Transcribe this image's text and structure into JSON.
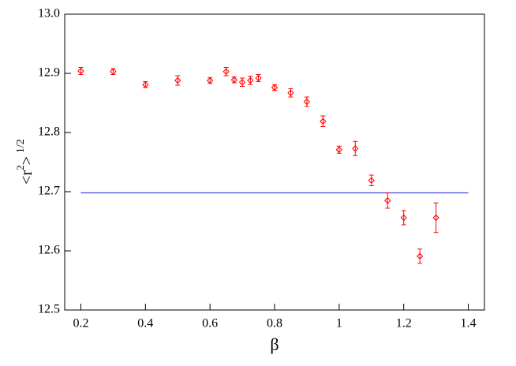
{
  "chart_data": {
    "type": "scatter",
    "x_label": "β",
    "y_label": [
      "<r",
      "2",
      ">",
      "1/2"
    ],
    "xlim": [
      0.15,
      1.45
    ],
    "xticks": [
      0.2,
      0.4,
      0.6,
      0.8,
      1,
      1.2,
      1.4
    ],
    "ylim": [
      12.5,
      13.0
    ],
    "yticks": [
      12.5,
      12.6,
      12.7,
      12.8,
      12.9,
      {
        "value": 13.0,
        "label": "13.0"
      }
    ],
    "series": [
      {
        "color": "#ff0000",
        "x": [
          0.2,
          0.3,
          0.4,
          0.5,
          0.6,
          0.65,
          0.675,
          0.7,
          0.725,
          0.75,
          0.8,
          0.85,
          0.9,
          0.95,
          1.0,
          1.05,
          1.1,
          1.15,
          1.2,
          1.25,
          1.3
        ],
        "values": [
          12.904,
          12.903,
          12.881,
          12.888,
          12.888,
          12.903,
          12.889,
          12.885,
          12.888,
          12.892,
          12.876,
          12.867,
          12.852,
          12.819,
          12.771,
          12.773,
          12.719,
          12.685,
          12.656,
          12.591,
          12.656
        ],
        "errors": [
          0.006,
          0.005,
          0.005,
          0.008,
          0.005,
          0.007,
          0.005,
          0.007,
          0.007,
          0.006,
          0.005,
          0.007,
          0.008,
          0.009,
          0.006,
          0.012,
          0.009,
          0.013,
          0.012,
          0.012,
          0.025
        ]
      }
    ],
    "hline": {
      "value": 12.698,
      "color": "#4444ee",
      "xrange": [
        0.2,
        1.4
      ]
    }
  }
}
